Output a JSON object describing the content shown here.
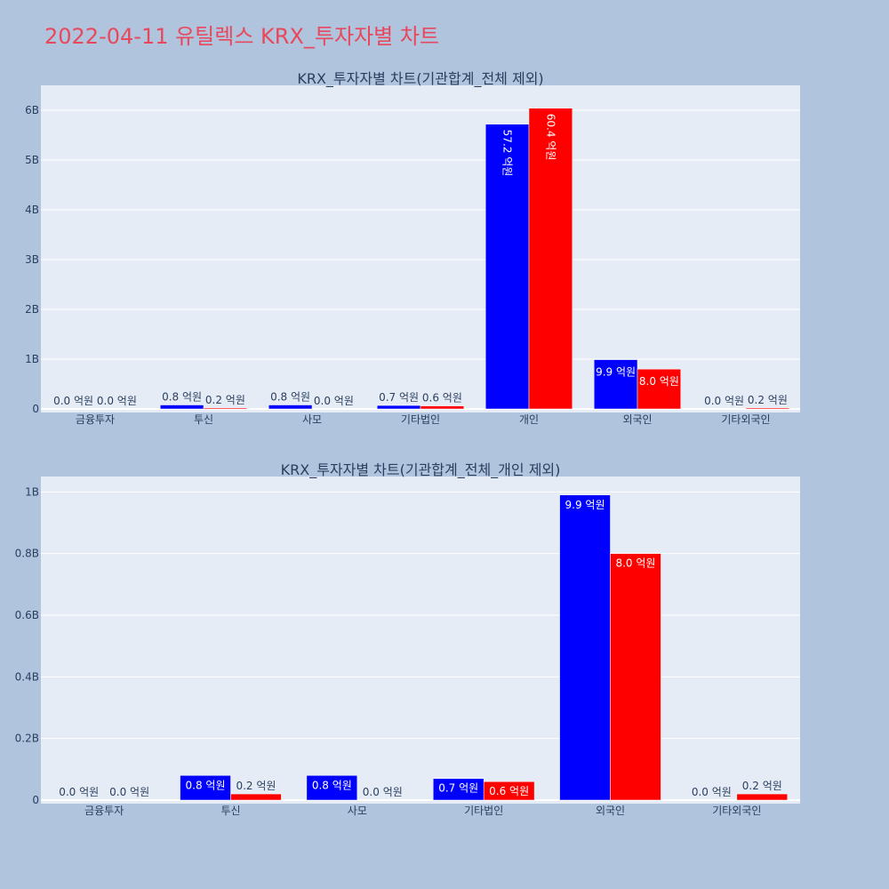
{
  "page": {
    "title": "2022-04-11 유틸렉스 KRX_투자자별 차트",
    "title_color": "#e8485c",
    "background": "#b0c4de",
    "plot_background": "#e5ecf6",
    "text_color": "#2a3f5f"
  },
  "chart_data": [
    {
      "type": "bar",
      "title": "KRX_투자자별 차트(기관합계_전체 제외)",
      "xlabel": "",
      "ylabel": "",
      "categories": [
        "금융투자",
        "투신",
        "사모",
        "기타법인",
        "개인",
        "외국인",
        "기타외국인"
      ],
      "series": [
        {
          "color": "#0000ff",
          "values": [
            0.0,
            0.08,
            0.08,
            0.07,
            5.72,
            0.99,
            0.0
          ],
          "labels": [
            "0.0 억원",
            "0.8 억원",
            "0.8 억원",
            "0.7 억원",
            "57.2 억원",
            "9.9 억원",
            "0.0 억원"
          ]
        },
        {
          "color": "#ff0000",
          "values": [
            0.0,
            0.02,
            0.0,
            0.06,
            6.04,
            0.8,
            0.02
          ],
          "labels": [
            "0.0 억원",
            "0.2 억원",
            "0.0 억원",
            "0.6 억원",
            "60.4 억원",
            "8.0 억원",
            "0.2 억원"
          ]
        }
      ],
      "ylim": [
        0,
        6.5
      ],
      "yticks": [
        0,
        1,
        2,
        3,
        4,
        5,
        6
      ],
      "ytick_labels": [
        "0",
        "1B",
        "2B",
        "3B",
        "4B",
        "5B",
        "6B"
      ],
      "grid": true,
      "legend": "none"
    },
    {
      "type": "bar",
      "title": "KRX_투자자별 차트(기관합계_전체_개인 제외)",
      "xlabel": "",
      "ylabel": "",
      "categories": [
        "금융투자",
        "투신",
        "사모",
        "기타법인",
        "외국인",
        "기타외국인"
      ],
      "series": [
        {
          "color": "#0000ff",
          "values": [
            0.0,
            0.08,
            0.08,
            0.07,
            0.99,
            0.0
          ],
          "labels": [
            "0.0 억원",
            "0.8 억원",
            "0.8 억원",
            "0.7 억원",
            "9.9 억원",
            "0.0 억원"
          ]
        },
        {
          "color": "#ff0000",
          "values": [
            0.0,
            0.02,
            0.0,
            0.06,
            0.8,
            0.02
          ],
          "labels": [
            "0.0 억원",
            "0.2 억원",
            "0.0 억원",
            "0.6 억원",
            "8.0 억원",
            "0.2 억원"
          ]
        }
      ],
      "ylim": [
        0,
        1.05
      ],
      "yticks": [
        0,
        0.2,
        0.4,
        0.6,
        0.8,
        1.0
      ],
      "ytick_labels": [
        "0",
        "0.2B",
        "0.4B",
        "0.6B",
        "0.8B",
        "1B"
      ],
      "grid": true,
      "legend": "none"
    }
  ]
}
